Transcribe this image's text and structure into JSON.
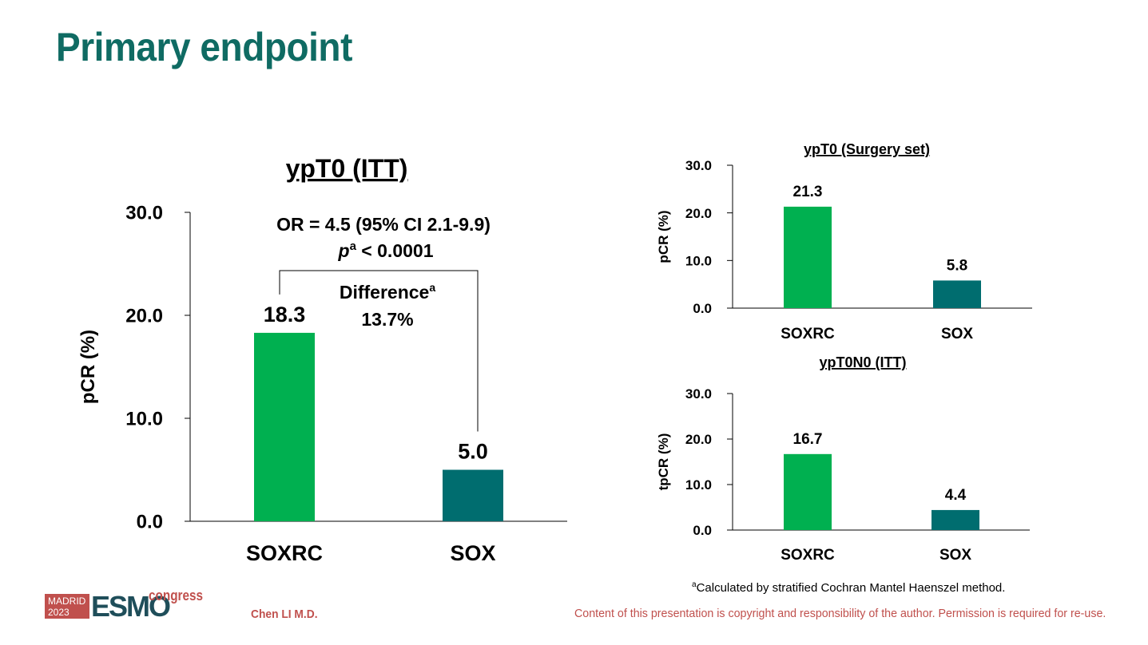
{
  "page_title": "Primary endpoint",
  "chart_data": [
    {
      "type": "bar",
      "title": "ypT0 (ITT)",
      "ylabel": "pCR (%)",
      "xlabel": "",
      "categories": [
        "SOXRC",
        "SOX"
      ],
      "values": [
        18.3,
        5.0
      ],
      "value_labels": [
        "18.3",
        "5.0"
      ],
      "ylim": [
        0,
        30
      ],
      "yticks": [
        "0.0",
        "10.0",
        "20.0",
        "30.0"
      ],
      "colors": [
        "#00b050",
        "#006d6f"
      ],
      "annotations": {
        "or_text": "OR = 4.5 (95% CI 2.1-9.9)",
        "p_label": "p",
        "p_sup": "a",
        "p_value": " < 0.0001",
        "difference_label": "Difference",
        "difference_sup": "a",
        "difference_value": "13.7%"
      }
    },
    {
      "type": "bar",
      "title": "ypT0 (Surgery set)",
      "ylabel": "pCR (%)",
      "xlabel": "",
      "categories": [
        "SOXRC",
        "SOX"
      ],
      "values": [
        21.3,
        5.8
      ],
      "value_labels": [
        "21.3",
        "5.8"
      ],
      "ylim": [
        0,
        30
      ],
      "yticks": [
        "0.0",
        "10.0",
        "20.0",
        "30.0"
      ],
      "colors": [
        "#00b050",
        "#006d6f"
      ]
    },
    {
      "type": "bar",
      "title": "ypT0N0 (ITT)",
      "ylabel": "tpCR (%)",
      "xlabel": "",
      "categories": [
        "SOXRC",
        "SOX"
      ],
      "values": [
        16.7,
        4.4
      ],
      "value_labels": [
        "16.7",
        "4.4"
      ],
      "ylim": [
        0,
        30
      ],
      "yticks": [
        "0.0",
        "10.0",
        "20.0",
        "30.0"
      ],
      "colors": [
        "#00b050",
        "#006d6f"
      ]
    }
  ],
  "footnote": {
    "sup": "a",
    "text": "Calculated by stratified Cochran Mantel Haenszel method."
  },
  "footer": {
    "author": "Chen LI M.D.",
    "copyright": "Content of this presentation is copyright and responsibility of the author. Permission is required for re-use.",
    "logo_city": "MADRID",
    "logo_year": "2023",
    "logo_brand": "ESMO",
    "logo_suffix": "congress"
  }
}
